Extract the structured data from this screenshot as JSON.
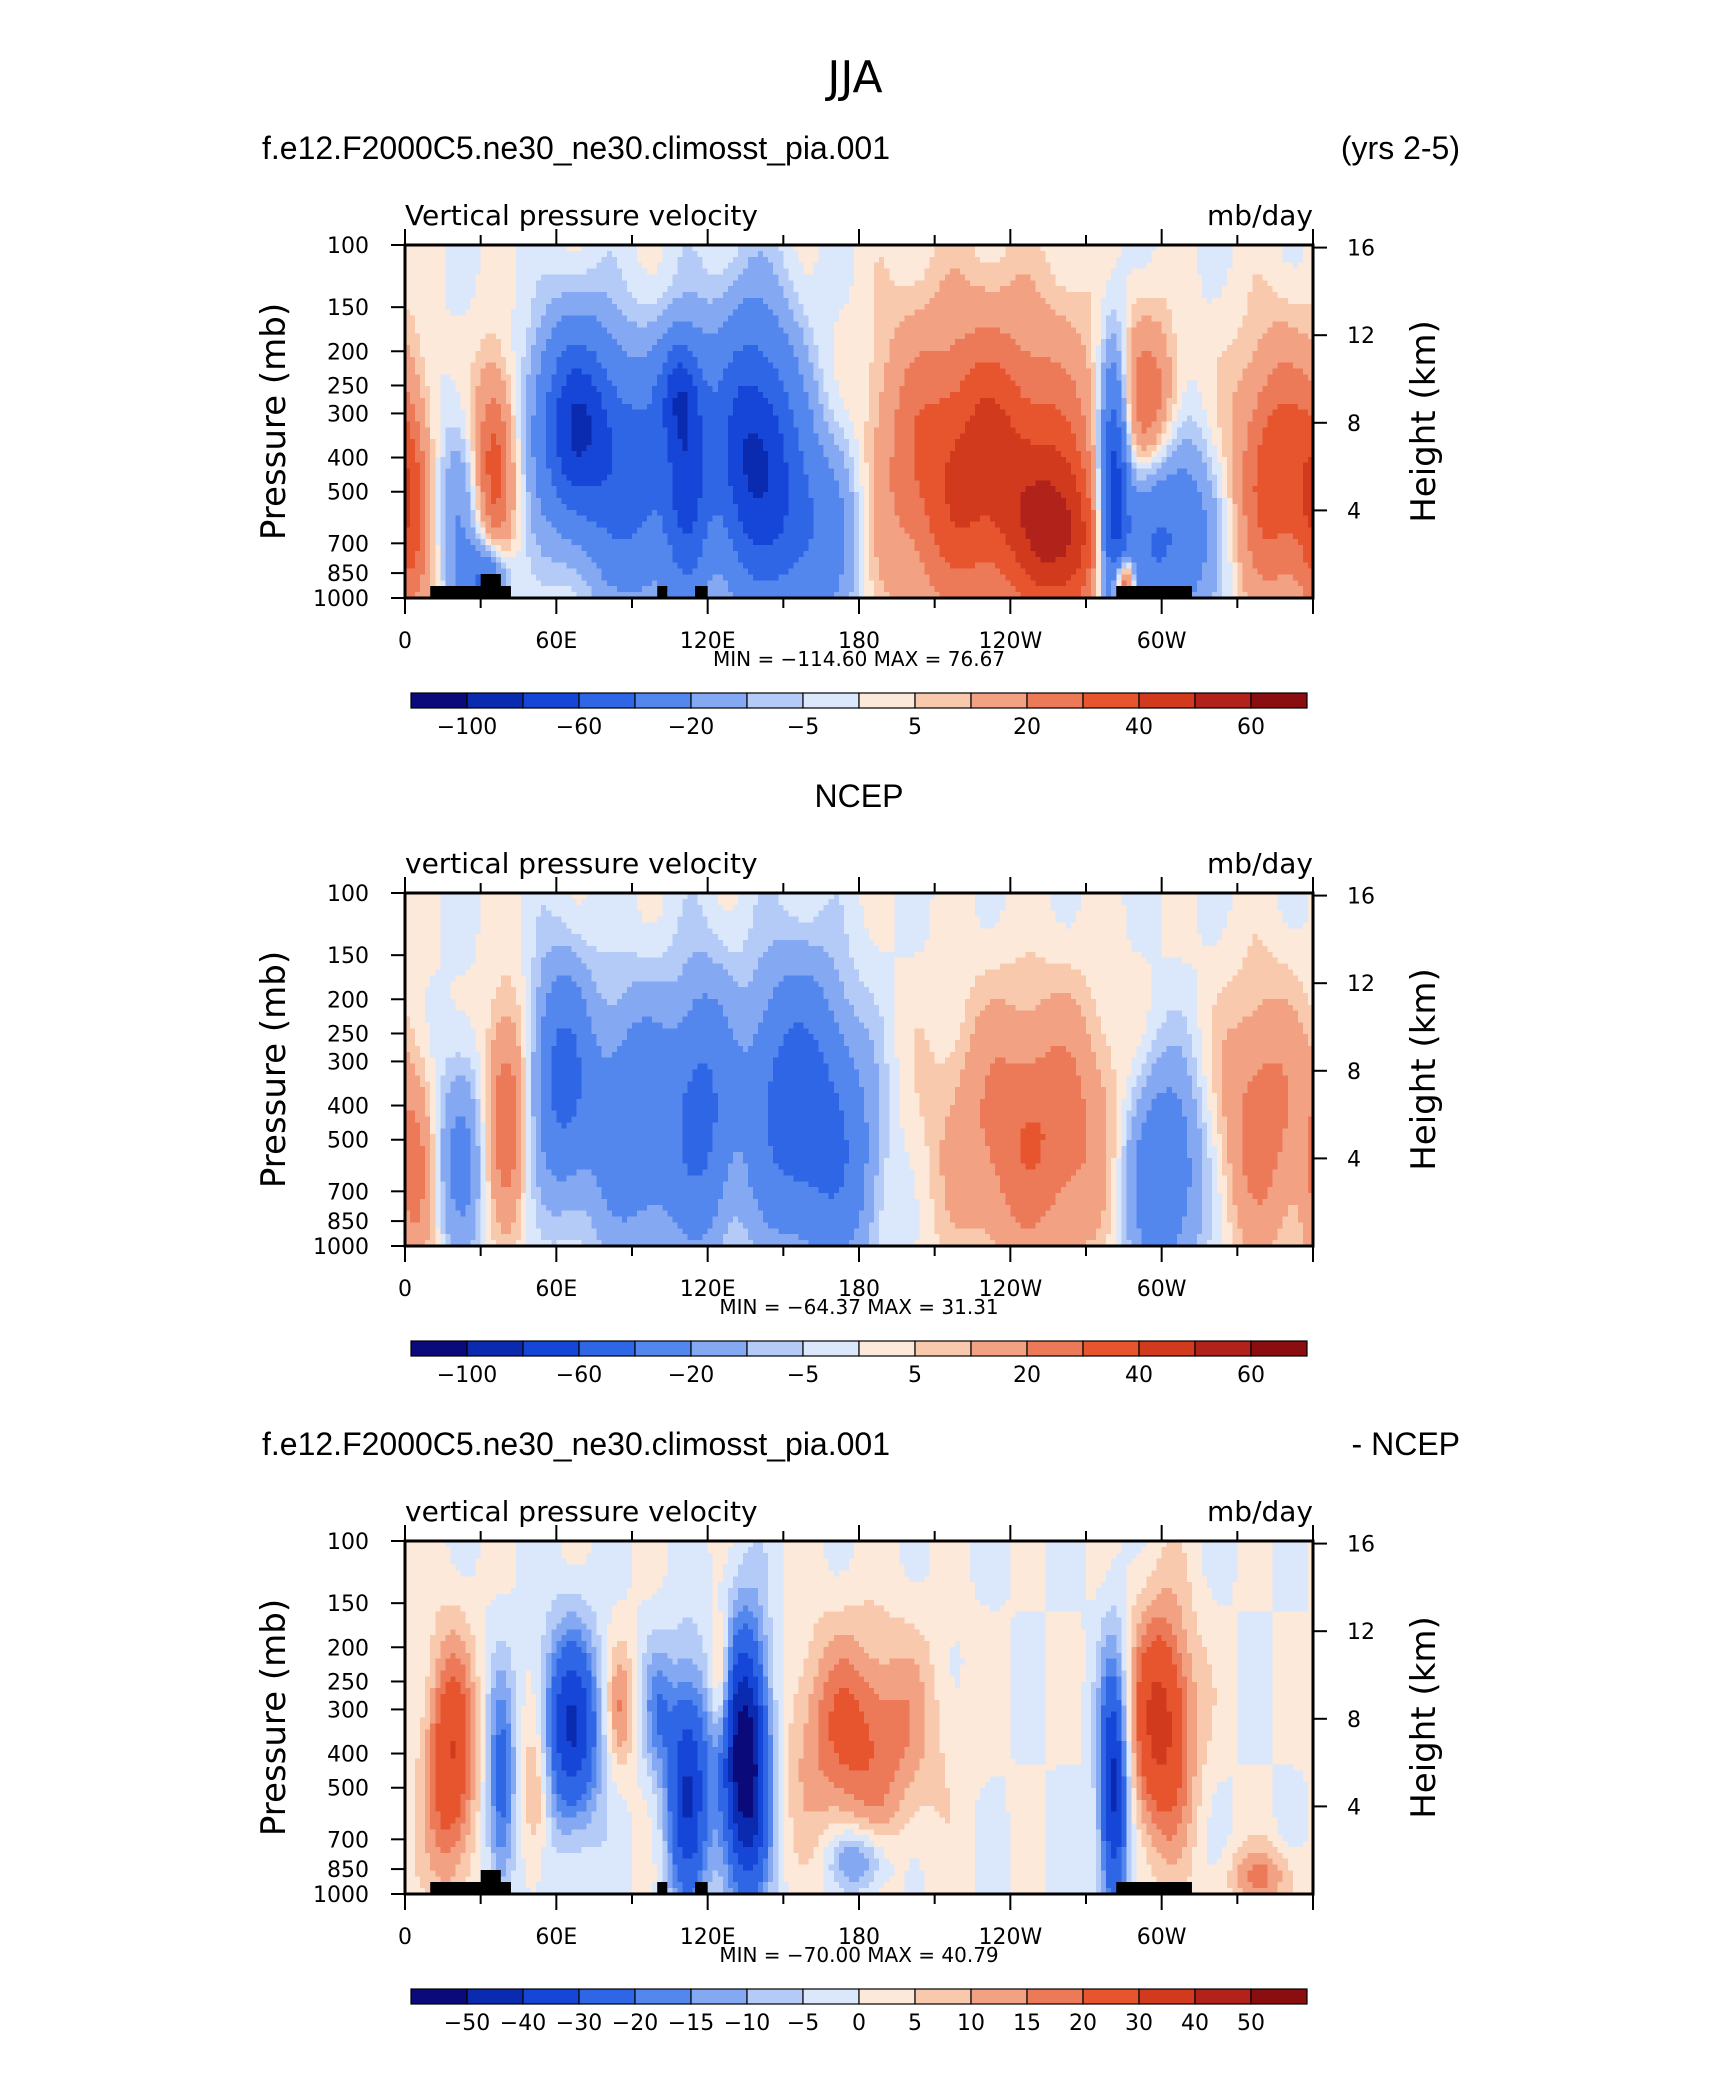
{
  "page": {
    "title": "JJA"
  },
  "colors": {
    "ramp_main": [
      "#0a0a7a",
      "#0a2ab0",
      "#1646d8",
      "#2e66e6",
      "#5487ee",
      "#84a8f2",
      "#b3cbf6",
      "#dbe8fb",
      "#fde9d9",
      "#f8c9ad",
      "#f2a283",
      "#ec7a58",
      "#e7552f",
      "#d23a1e",
      "#b0221a",
      "#8a0d10"
    ],
    "ramp_diff": [
      "#0a0a7a",
      "#0a2ab0",
      "#1646d8",
      "#2e66e6",
      "#5487ee",
      "#84a8f2",
      "#b3cbf6",
      "#dbe8fb",
      "#fde9d9",
      "#f8c9ad",
      "#f2a283",
      "#ec7a58",
      "#e7552f",
      "#d23a1e",
      "#b0221a",
      "#8a0d10"
    ],
    "land": "#000000"
  },
  "panels": [
    {
      "title_left": "f.e12.F2000C5.ne30_ne30.climosst_pia.001",
      "title_right": "(yrs 2-5)",
      "var_left": "Vertical pressure velocity",
      "var_right": "mb/day",
      "ylabel": "Pressure (mb)",
      "ylabel_right": "Height (km)",
      "minmax": "MIN = −114.60   MAX =   76.67",
      "colorbar_labels": [
        "−100",
        "−60",
        "−20",
        "−5",
        "5",
        "20",
        "40",
        "60"
      ],
      "land": true
    },
    {
      "title_center": "NCEP",
      "var_left": "vertical pressure velocity",
      "var_right": "mb/day",
      "ylabel": "Pressure (mb)",
      "ylabel_right": "Height (km)",
      "minmax": "MIN = −64.37   MAX =   31.31",
      "colorbar_labels": [
        "−100",
        "−60",
        "−20",
        "−5",
        "5",
        "20",
        "40",
        "60"
      ],
      "land": false
    },
    {
      "title_left": "f.e12.F2000C5.ne30_ne30.climosst_pia.001",
      "title_right": "- NCEP",
      "var_left": "vertical pressure velocity",
      "var_right": "mb/day",
      "ylabel": "Pressure (mb)",
      "ylabel_right": "Height (km)",
      "minmax": "MIN = −70.00   MAX =   40.79",
      "colorbar_labels": [
        "−50",
        "−40",
        "−30",
        "−20",
        "−15",
        "−10",
        "−5",
        "0",
        "5",
        "10",
        "15",
        "20",
        "30",
        "40",
        "50"
      ],
      "land": true
    }
  ],
  "chart_data": [
    {
      "type": "heatmap",
      "title": "f.e12.F2000C5.ne30_ne30.climosst_pia.001",
      "subtitle": "Vertical pressure velocity",
      "units": "mb/day",
      "xlabel": "",
      "ylabel": "Pressure (mb)",
      "ylabel_right": "Height (km)",
      "x_ticks": [
        "0",
        "60E",
        "120E",
        "180",
        "120W",
        "60W"
      ],
      "y_ticks": [
        100,
        150,
        200,
        250,
        300,
        400,
        500,
        700,
        850,
        1000
      ],
      "y_ticks_right": [
        4,
        8,
        12,
        16
      ],
      "ylim": [
        1000,
        100
      ],
      "y_scale": "log",
      "xlim": [
        0,
        360
      ],
      "min": -114.6,
      "max": 76.67,
      "levels": [
        -100,
        -80,
        -60,
        -40,
        -20,
        -10,
        -5,
        0,
        5,
        10,
        20,
        30,
        40,
        50,
        60
      ],
      "colorbar_labels": [
        "−100",
        "−60",
        "−20",
        "−5",
        "5",
        "20",
        "40",
        "60"
      ],
      "features": [
        {
          "lon": 2,
          "p": 550,
          "lonw": 6,
          "pw": 0.55,
          "v": 28
        },
        {
          "lon": 22,
          "p": 560,
          "lonw": 7,
          "pw": 0.45,
          "v": -20
        },
        {
          "lon": 35,
          "p": 420,
          "lonw": 6,
          "pw": 0.45,
          "v": 38
        },
        {
          "lon": 32,
          "p": 900,
          "lonw": 6,
          "pw": 0.18,
          "v": -45
        },
        {
          "lon": 68,
          "p": 330,
          "lonw": 11,
          "pw": 0.45,
          "v": -78
        },
        {
          "lon": 92,
          "p": 480,
          "lonw": 12,
          "pw": 0.55,
          "v": -45
        },
        {
          "lon": 108,
          "p": 260,
          "lonw": 6,
          "pw": 0.25,
          "v": -42
        },
        {
          "lon": 112,
          "p": 450,
          "lonw": 6,
          "pw": 0.55,
          "v": -55
        },
        {
          "lon": 138,
          "p": 390,
          "lonw": 12,
          "pw": 0.6,
          "v": -82
        },
        {
          "lon": 160,
          "p": 650,
          "lonw": 12,
          "pw": 0.45,
          "v": -35
        },
        {
          "lon": 175,
          "p": 500,
          "lonw": 8,
          "pw": 0.7,
          "v": -8
        },
        {
          "lon": 230,
          "p": 430,
          "lonw": 30,
          "pw": 0.7,
          "v": 46
        },
        {
          "lon": 262,
          "p": 700,
          "lonw": 12,
          "pw": 0.4,
          "v": 35
        },
        {
          "lon": 281,
          "p": 500,
          "lonw": 4,
          "pw": 0.6,
          "v": -75
        },
        {
          "lon": 285,
          "p": 900,
          "lonw": 3,
          "pw": 0.12,
          "v": 60
        },
        {
          "lon": 300,
          "p": 650,
          "lonw": 14,
          "pw": 0.45,
          "v": -48
        },
        {
          "lon": 295,
          "p": 300,
          "lonw": 8,
          "pw": 0.4,
          "v": 30
        },
        {
          "lon": 345,
          "p": 450,
          "lonw": 12,
          "pw": 0.6,
          "v": 38
        }
      ],
      "land_spans": [
        [
          10,
          42
        ],
        [
          100,
          104
        ],
        [
          115,
          120
        ],
        [
          282,
          312
        ]
      ]
    },
    {
      "type": "heatmap",
      "title": "NCEP",
      "subtitle": "vertical pressure velocity",
      "units": "mb/day",
      "xlabel": "",
      "ylabel": "Pressure (mb)",
      "ylabel_right": "Height (km)",
      "x_ticks": [
        "0",
        "60E",
        "120E",
        "180",
        "120W",
        "60W"
      ],
      "y_ticks": [
        100,
        150,
        200,
        250,
        300,
        400,
        500,
        700,
        850,
        1000
      ],
      "y_ticks_right": [
        4,
        8,
        12,
        16
      ],
      "ylim": [
        1000,
        100
      ],
      "y_scale": "log",
      "xlim": [
        0,
        360
      ],
      "min": -64.37,
      "max": 31.31,
      "levels": [
        -100,
        -80,
        -60,
        -40,
        -20,
        -10,
        -5,
        0,
        5,
        10,
        20,
        30,
        40,
        50,
        60
      ],
      "colorbar_labels": [
        "−100",
        "−60",
        "−20",
        "−5",
        "5",
        "20",
        "40",
        "60"
      ],
      "features": [
        {
          "lon": 4,
          "p": 600,
          "lonw": 6,
          "pw": 0.5,
          "v": 22
        },
        {
          "lon": 22,
          "p": 560,
          "lonw": 7,
          "pw": 0.45,
          "v": -25
        },
        {
          "lon": 40,
          "p": 420,
          "lonw": 6,
          "pw": 0.5,
          "v": 30
        },
        {
          "lon": 62,
          "p": 330,
          "lonw": 8,
          "pw": 0.5,
          "v": -45
        },
        {
          "lon": 92,
          "p": 450,
          "lonw": 14,
          "pw": 0.55,
          "v": -38
        },
        {
          "lon": 118,
          "p": 420,
          "lonw": 8,
          "pw": 0.6,
          "v": -40
        },
        {
          "lon": 155,
          "p": 400,
          "lonw": 14,
          "pw": 0.6,
          "v": -55
        },
        {
          "lon": 175,
          "p": 600,
          "lonw": 10,
          "pw": 0.5,
          "v": -22
        },
        {
          "lon": 250,
          "p": 480,
          "lonw": 24,
          "pw": 0.6,
          "v": 30
        },
        {
          "lon": 300,
          "p": 620,
          "lonw": 11,
          "pw": 0.5,
          "v": -40
        },
        {
          "lon": 340,
          "p": 440,
          "lonw": 12,
          "pw": 0.6,
          "v": 26
        }
      ],
      "land_spans": []
    },
    {
      "type": "heatmap",
      "title": "f.e12.F2000C5.ne30_ne30.climosst_pia.001 - NCEP",
      "subtitle": "vertical pressure velocity",
      "units": "mb/day",
      "xlabel": "",
      "ylabel": "Pressure (mb)",
      "ylabel_right": "Height (km)",
      "x_ticks": [
        "0",
        "60E",
        "120E",
        "180",
        "120W",
        "60W"
      ],
      "y_ticks": [
        100,
        150,
        200,
        250,
        300,
        400,
        500,
        700,
        850,
        1000
      ],
      "y_ticks_right": [
        4,
        8,
        12,
        16
      ],
      "ylim": [
        1000,
        100
      ],
      "y_scale": "log",
      "xlim": [
        0,
        360
      ],
      "min": -70.0,
      "max": 40.79,
      "levels": [
        -50,
        -40,
        -30,
        -20,
        -15,
        -10,
        -5,
        0,
        5,
        10,
        15,
        20,
        30,
        40,
        50
      ],
      "colorbar_labels": [
        "−50",
        "−40",
        "−30",
        "−20",
        "−15",
        "−10",
        "−5",
        "0",
        "5",
        "10",
        "15",
        "20",
        "30",
        "40",
        "50"
      ],
      "features": [
        {
          "lon": 18,
          "p": 420,
          "lonw": 7,
          "pw": 0.55,
          "v": 30
        },
        {
          "lon": 38,
          "p": 500,
          "lonw": 4,
          "pw": 0.5,
          "v": -25
        },
        {
          "lon": 52,
          "p": 500,
          "lonw": 4,
          "pw": 0.35,
          "v": 15
        },
        {
          "lon": 66,
          "p": 340,
          "lonw": 8,
          "pw": 0.45,
          "v": -40
        },
        {
          "lon": 85,
          "p": 300,
          "lonw": 4,
          "pw": 0.3,
          "v": 15
        },
        {
          "lon": 100,
          "p": 300,
          "lonw": 4,
          "pw": 0.3,
          "v": -15
        },
        {
          "lon": 112,
          "p": 500,
          "lonw": 6,
          "pw": 0.55,
          "v": -40
        },
        {
          "lon": 125,
          "p": 250,
          "lonw": 3,
          "pw": 0.3,
          "v": 20
        },
        {
          "lon": 135,
          "p": 420,
          "lonw": 7,
          "pw": 0.6,
          "v": -62
        },
        {
          "lon": 180,
          "p": 360,
          "lonw": 20,
          "pw": 0.5,
          "v": 22
        },
        {
          "lon": 180,
          "p": 800,
          "lonw": 8,
          "pw": 0.15,
          "v": -20
        },
        {
          "lon": 281,
          "p": 500,
          "lonw": 4,
          "pw": 0.6,
          "v": -45
        },
        {
          "lon": 300,
          "p": 330,
          "lonw": 9,
          "pw": 0.55,
          "v": 34
        },
        {
          "lon": 340,
          "p": 900,
          "lonw": 10,
          "pw": 0.15,
          "v": 15
        }
      ],
      "land_spans": [
        [
          10,
          42
        ],
        [
          100,
          104
        ],
        [
          115,
          120
        ],
        [
          282,
          312
        ]
      ]
    }
  ]
}
